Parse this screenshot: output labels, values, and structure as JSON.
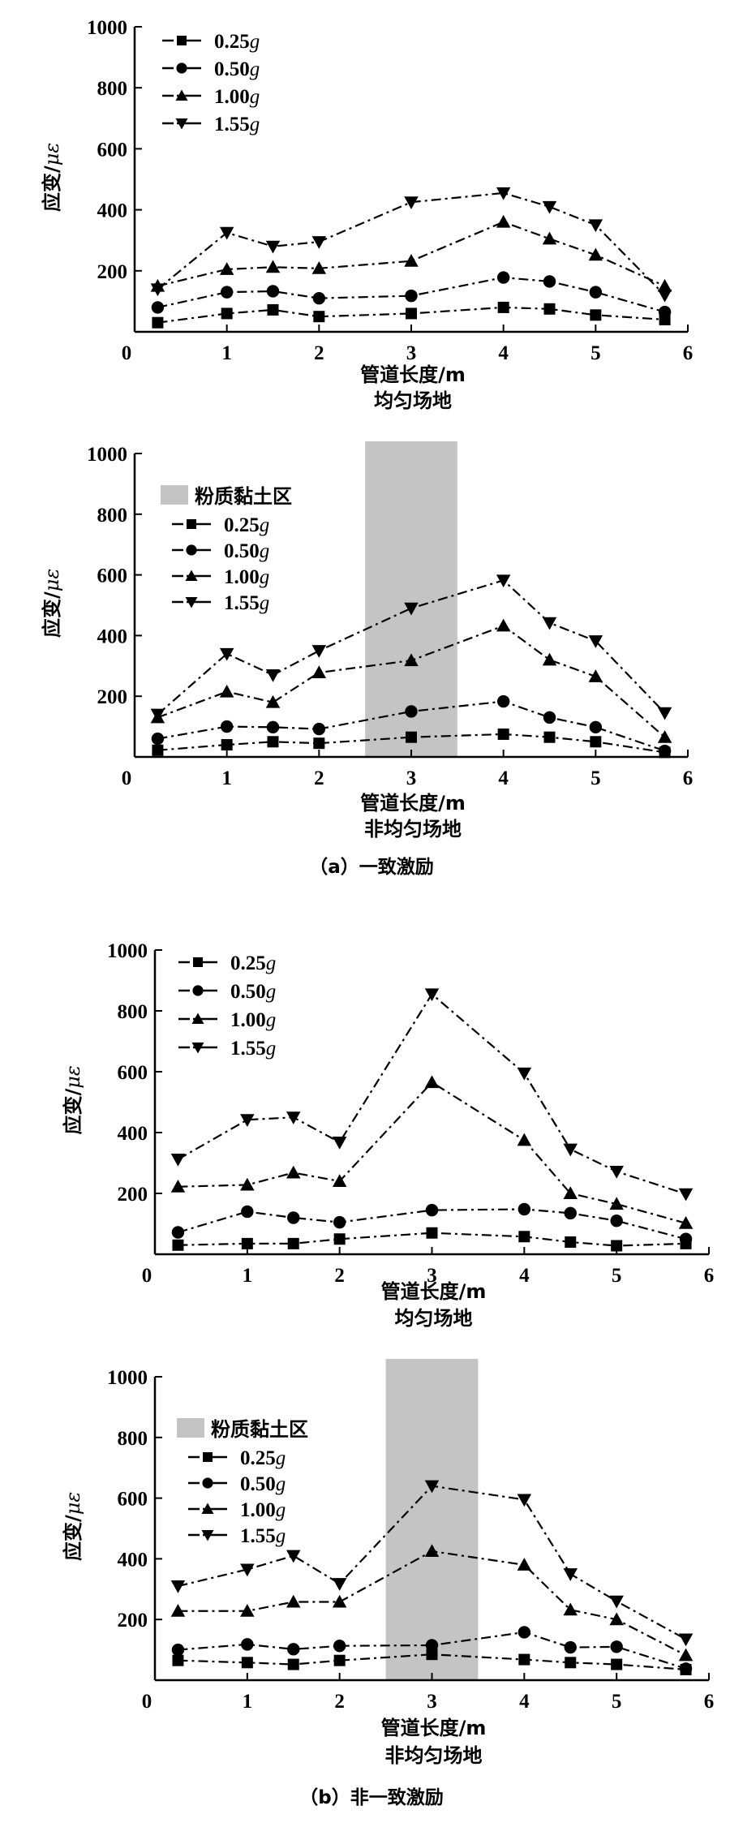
{
  "figure": {
    "caption_a": "（a）一致激励",
    "caption_b": "（b）非一致激励"
  },
  "colors": {
    "line": "#000000",
    "band": "#c4c4c4",
    "background": "#ffffff"
  },
  "chart_data": [
    {
      "type": "line",
      "panel": "a-uniform",
      "xlabel": "管道长度/m",
      "sublabel": "均匀场地",
      "ylabel_main": "应变/",
      "ylabel_unit": "με",
      "xlim": [
        0,
        6
      ],
      "ylim": [
        0,
        1000
      ],
      "xticks": [
        "0",
        "1",
        "2",
        "3",
        "4",
        "5",
        "6"
      ],
      "yticks": [
        "200",
        "400",
        "600",
        "800",
        "1000"
      ],
      "legend_position": "top-left",
      "band": null,
      "x": [
        0.25,
        1,
        1.5,
        2,
        3,
        4,
        4.5,
        5,
        5.75
      ],
      "series": [
        {
          "name": "0.25",
          "unit": "g",
          "marker": "square",
          "values": [
            30,
            60,
            72,
            50,
            60,
            80,
            75,
            55,
            40
          ]
        },
        {
          "name": "0.50",
          "unit": "g",
          "marker": "circle",
          "values": [
            80,
            130,
            133,
            110,
            118,
            178,
            165,
            130,
            65
          ]
        },
        {
          "name": "1.00",
          "unit": "g",
          "marker": "triangle-up",
          "values": [
            150,
            205,
            212,
            208,
            232,
            360,
            305,
            252,
            150
          ]
        },
        {
          "name": "1.55",
          "unit": "g",
          "marker": "triangle-down",
          "values": [
            140,
            325,
            280,
            295,
            425,
            455,
            410,
            350,
            120
          ]
        }
      ]
    },
    {
      "type": "line",
      "panel": "a-nonuniform",
      "xlabel": "管道长度/m",
      "sublabel": "非均匀场地",
      "ylabel_main": "应变/",
      "ylabel_unit": "με",
      "xlim": [
        0,
        6
      ],
      "ylim": [
        0,
        1000
      ],
      "xticks": [
        "0",
        "1",
        "2",
        "3",
        "4",
        "5",
        "6"
      ],
      "yticks": [
        "200",
        "400",
        "600",
        "800",
        "1000"
      ],
      "legend_position": "top-left",
      "band": {
        "label": "粉质黏土区",
        "x_from": 2.5,
        "x_to": 3.5
      },
      "x": [
        0.25,
        1,
        1.5,
        2,
        3,
        4,
        4.5,
        5,
        5.75
      ],
      "series": [
        {
          "name": "0.25",
          "unit": "g",
          "marker": "square",
          "values": [
            22,
            40,
            50,
            45,
            65,
            75,
            65,
            50,
            15
          ]
        },
        {
          "name": "0.50",
          "unit": "g",
          "marker": "circle",
          "values": [
            60,
            100,
            98,
            92,
            150,
            183,
            130,
            98,
            20
          ]
        },
        {
          "name": "1.00",
          "unit": "g",
          "marker": "triangle-up",
          "values": [
            130,
            215,
            180,
            278,
            318,
            432,
            320,
            265,
            65
          ]
        },
        {
          "name": "1.55",
          "unit": "g",
          "marker": "triangle-down",
          "values": [
            140,
            340,
            270,
            350,
            490,
            582,
            442,
            382,
            145
          ]
        }
      ]
    },
    {
      "type": "line",
      "panel": "b-uniform",
      "xlabel": "管道长度/m",
      "sublabel": "均匀场地",
      "ylabel_main": "应变/",
      "ylabel_unit": "με",
      "xlim": [
        0,
        6
      ],
      "ylim": [
        0,
        1000
      ],
      "xticks": [
        "0",
        "1",
        "2",
        "3",
        "4",
        "5",
        "6"
      ],
      "yticks": [
        "200",
        "400",
        "600",
        "800",
        "1000"
      ],
      "legend_position": "top-left",
      "band": null,
      "x": [
        0.25,
        1,
        1.5,
        2,
        3,
        4,
        4.5,
        5,
        5.75
      ],
      "series": [
        {
          "name": "0.25",
          "unit": "g",
          "marker": "square",
          "values": [
            30,
            35,
            35,
            50,
            70,
            58,
            40,
            28,
            35
          ]
        },
        {
          "name": "0.50",
          "unit": "g",
          "marker": "circle",
          "values": [
            72,
            140,
            120,
            105,
            145,
            148,
            135,
            110,
            50
          ]
        },
        {
          "name": "1.00",
          "unit": "g",
          "marker": "triangle-up",
          "values": [
            222,
            228,
            268,
            240,
            565,
            375,
            200,
            165,
            102
          ]
        },
        {
          "name": "1.55",
          "unit": "g",
          "marker": "triangle-down",
          "values": [
            312,
            442,
            450,
            368,
            855,
            595,
            345,
            272,
            198
          ]
        }
      ]
    },
    {
      "type": "line",
      "panel": "b-nonuniform",
      "xlabel": "管道长度/m",
      "sublabel": "非均匀场地",
      "ylabel_main": "应变/",
      "ylabel_unit": "με",
      "xlim": [
        0,
        6
      ],
      "ylim": [
        0,
        1000
      ],
      "xticks": [
        "0",
        "1",
        "2",
        "3",
        "4",
        "5",
        "6"
      ],
      "yticks": [
        "200",
        "400",
        "600",
        "800",
        "1000"
      ],
      "legend_position": "top-left",
      "band": {
        "label": "粉质黏土区",
        "x_from": 2.5,
        "x_to": 3.5
      },
      "x": [
        0.25,
        1,
        1.5,
        2,
        3,
        4,
        4.5,
        5,
        5.75
      ],
      "series": [
        {
          "name": "0.25",
          "unit": "g",
          "marker": "square",
          "values": [
            65,
            58,
            52,
            65,
            85,
            68,
            58,
            52,
            35
          ]
        },
        {
          "name": "0.50",
          "unit": "g",
          "marker": "circle",
          "values": [
            100,
            118,
            102,
            113,
            115,
            158,
            108,
            110,
            38
          ]
        },
        {
          "name": "1.00",
          "unit": "g",
          "marker": "triangle-up",
          "values": [
            228,
            228,
            258,
            258,
            425,
            380,
            232,
            200,
            82
          ]
        },
        {
          "name": "1.55",
          "unit": "g",
          "marker": "triangle-down",
          "values": [
            310,
            365,
            410,
            318,
            640,
            595,
            350,
            260,
            135
          ]
        }
      ]
    }
  ]
}
